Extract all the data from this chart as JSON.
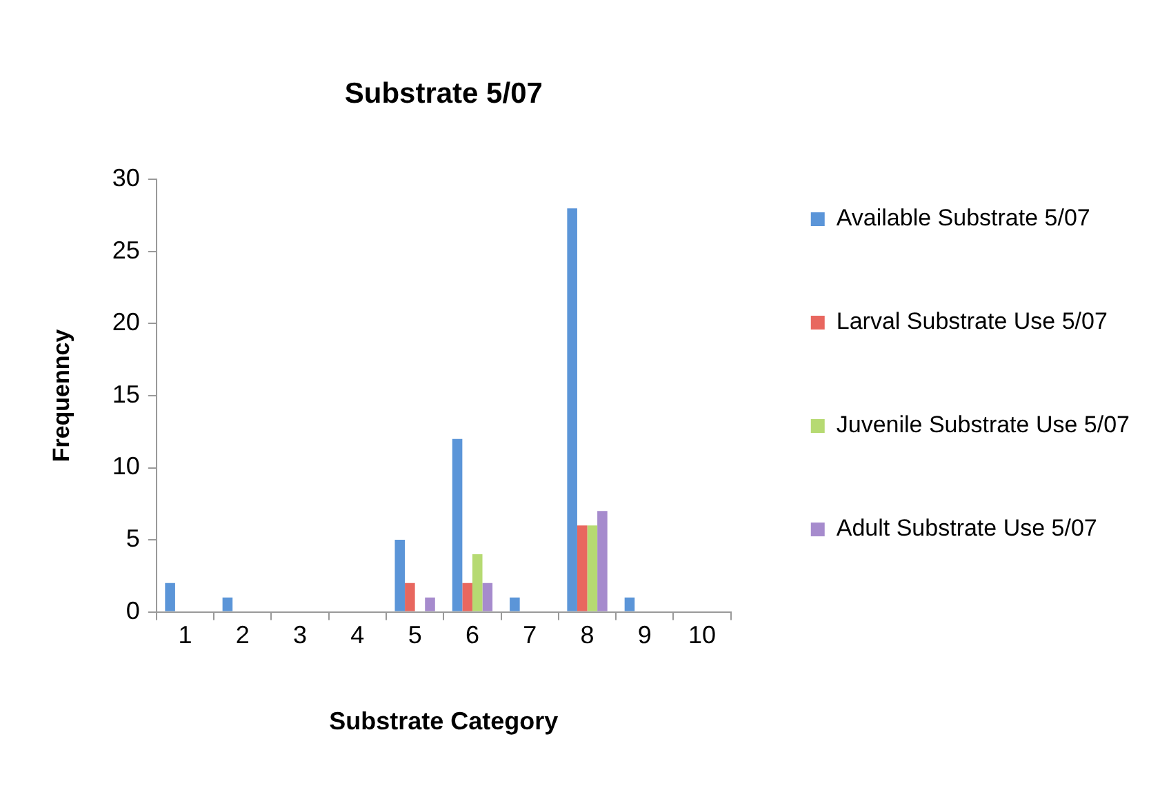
{
  "chart_data": {
    "type": "bar",
    "title": "Substrate 5/07",
    "xlabel": "Substrate Category",
    "ylabel": "Frequenncy",
    "categories": [
      "1",
      "2",
      "3",
      "4",
      "5",
      "6",
      "7",
      "8",
      "9",
      "10"
    ],
    "series": [
      {
        "name": "Available Substrate 5/07",
        "color": "#5b95d8",
        "values": [
          2,
          1,
          0,
          0,
          5,
          12,
          1,
          28,
          1,
          0
        ]
      },
      {
        "name": "Larval Substrate Use 5/07",
        "color": "#e8675f",
        "values": [
          0,
          0,
          0,
          0,
          2,
          2,
          0,
          6,
          0,
          0
        ]
      },
      {
        "name": "Juvenile Substrate Use 5/07",
        "color": "#b6da72",
        "values": [
          0,
          0,
          0,
          0,
          0,
          4,
          0,
          6,
          0,
          0
        ]
      },
      {
        "name": "Adult Substrate Use 5/07",
        "color": "#a68bcd",
        "values": [
          0,
          0,
          0,
          0,
          1,
          2,
          0,
          7,
          0,
          0
        ]
      }
    ],
    "ylim": [
      0,
      30
    ],
    "yticks": [
      0,
      5,
      10,
      15,
      20,
      25,
      30
    ],
    "grid": false,
    "legend": "right"
  }
}
